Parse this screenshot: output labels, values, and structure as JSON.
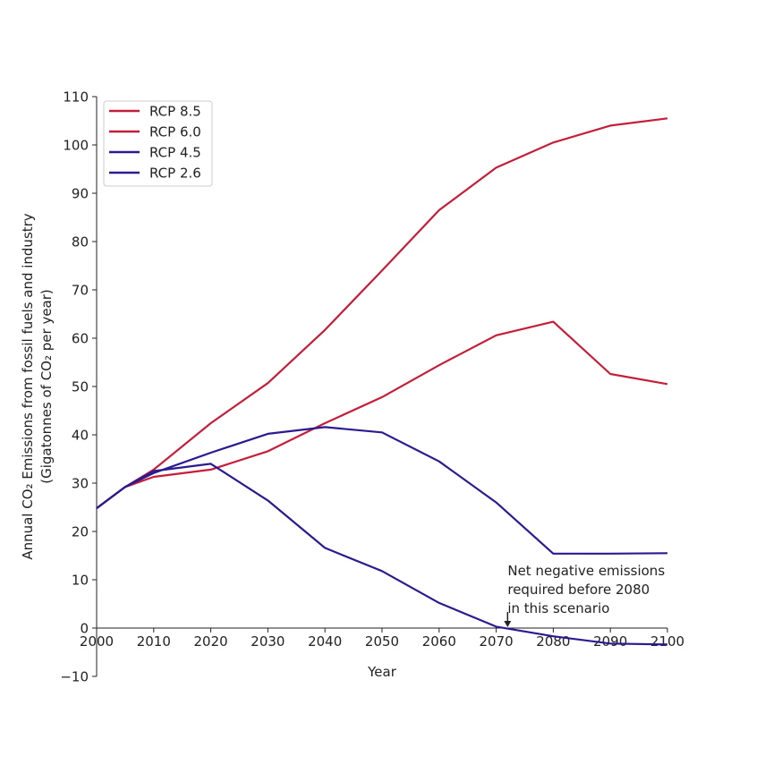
{
  "chart_data": {
    "type": "line",
    "title": "",
    "xlabel": "Year",
    "ylabel_line1": "Annual CO₂ Emissions from fossil fuels and industry",
    "ylabel_line2": "(Gigatonnes of CO₂ per year)",
    "xlim": [
      2000,
      2100
    ],
    "ylim": [
      -10,
      110
    ],
    "x_ticks": [
      2000,
      2010,
      2020,
      2030,
      2040,
      2050,
      2060,
      2070,
      2080,
      2090,
      2100
    ],
    "y_ticks": [
      -10,
      0,
      10,
      20,
      30,
      40,
      50,
      60,
      70,
      80,
      90,
      100,
      110
    ],
    "grid": false,
    "legend_position": "top-left",
    "x": [
      2000,
      2005,
      2010,
      2020,
      2030,
      2040,
      2050,
      2060,
      2070,
      2080,
      2090,
      2100
    ],
    "series": [
      {
        "name": "RCP 8.5",
        "color": "#c41e3a",
        "values": [
          24.8,
          29.2,
          32.8,
          42.4,
          50.7,
          61.7,
          74.0,
          86.5,
          95.3,
          100.5,
          104.0,
          105.5
        ]
      },
      {
        "name": "RCP 6.0",
        "color": "#c41e3a",
        "values": [
          24.8,
          29.2,
          31.3,
          32.8,
          36.6,
          42.4,
          47.8,
          54.4,
          60.6,
          63.4,
          52.6,
          50.5
        ]
      },
      {
        "name": "RCP 4.5",
        "color": "#2b1b8f",
        "values": [
          24.8,
          29.2,
          32.1,
          36.3,
          40.2,
          41.6,
          40.5,
          34.5,
          26.0,
          15.4,
          15.4,
          15.5
        ]
      },
      {
        "name": "RCP 2.6",
        "color": "#2b1b8f",
        "values": [
          24.8,
          29.2,
          32.5,
          34.0,
          26.4,
          16.6,
          11.8,
          5.2,
          0.3,
          -1.7,
          -3.2,
          -3.4
        ]
      }
    ],
    "annotation": {
      "lines": [
        "Net negative emissions",
        "required before 2080",
        "in this scenario"
      ],
      "arrow_x": 2072,
      "arrow_y": 0
    }
  }
}
